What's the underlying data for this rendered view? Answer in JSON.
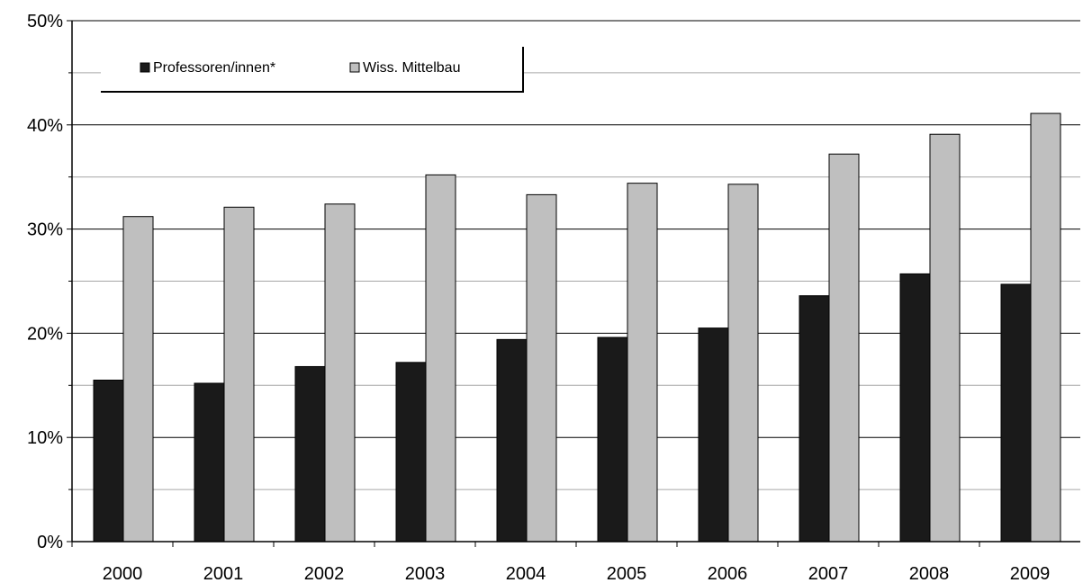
{
  "chart_data": {
    "type": "bar",
    "categories": [
      "2000",
      "2001",
      "2002",
      "2003",
      "2004",
      "2005",
      "2006",
      "2007",
      "2008",
      "2009"
    ],
    "series": [
      {
        "name": "Professoren/innen*",
        "color": "#1a1a1a",
        "values": [
          15.5,
          15.2,
          16.8,
          17.2,
          19.4,
          19.6,
          20.5,
          23.6,
          25.7,
          24.7
        ]
      },
      {
        "name": "Wiss. Mittelbau",
        "color": "#bfbfbf",
        "values": [
          31.2,
          32.1,
          32.4,
          35.2,
          33.3,
          34.4,
          34.3,
          37.2,
          39.1,
          41.1
        ]
      }
    ],
    "ylim": [
      0,
      50
    ],
    "yticks": [
      0,
      10,
      20,
      30,
      40,
      50
    ],
    "ytick_labels": [
      "0%",
      "10%",
      "20%",
      "30%",
      "40%",
      "50%"
    ],
    "minor_gridlines": [
      5,
      15,
      25,
      35,
      45
    ],
    "grid": true,
    "legend_position": "top-left"
  }
}
